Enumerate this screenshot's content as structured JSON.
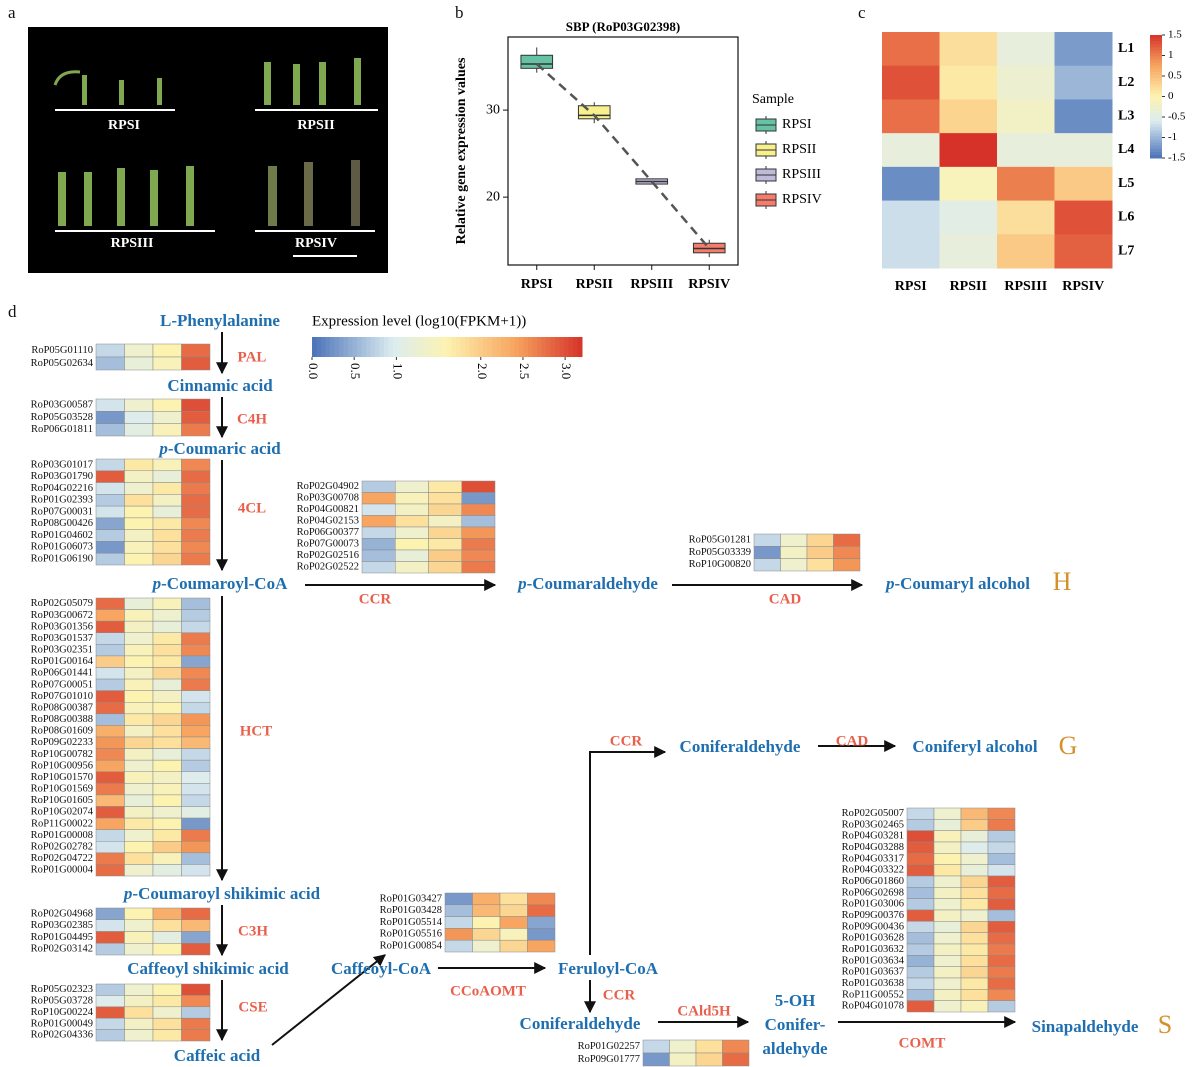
{
  "panel_labels": [
    "a",
    "b",
    "c",
    "d"
  ],
  "panel_a": {
    "stages": [
      "RPSI",
      "RPSII",
      "RPSIII",
      "RPSIV"
    ]
  },
  "chart_data": [
    {
      "type": "box",
      "title": "SBP (RoP03G02398)",
      "y_label": "Relative gene expression values",
      "categories": [
        "RPSI",
        "RPSII",
        "RPSIII",
        "RPSIV"
      ],
      "low": [
        34.3,
        28.5,
        21.5,
        13.1
      ],
      "q1": [
        34.8,
        29.0,
        21.5,
        13.6
      ],
      "median": [
        35.3,
        29.4,
        21.8,
        14.1
      ],
      "q3": [
        36.3,
        30.5,
        22.1,
        14.7
      ],
      "high": [
        37.2,
        30.9,
        22.1,
        15.1
      ],
      "colors": [
        "#66c2a5",
        "#f7f08c",
        "#bebada",
        "#f47c6c"
      ],
      "legend_title": "Sample",
      "ylim": [
        12.2,
        38.4
      ],
      "yticks": [
        20,
        30
      ]
    },
    {
      "type": "heatmap",
      "rows": [
        "L1",
        "L2",
        "L3",
        "L4",
        "L5",
        "L6",
        "L7"
      ],
      "columns": [
        "RPSI",
        "RPSII",
        "RPSIII",
        "RPSIV"
      ],
      "values": [
        [
          1.1,
          0.2,
          -0.4,
          -1.2
        ],
        [
          1.3,
          0.1,
          -0.3,
          -1.0
        ],
        [
          1.1,
          0.3,
          -0.2,
          -1.3
        ],
        [
          -0.4,
          1.5,
          -0.4,
          -0.4
        ],
        [
          -1.3,
          -0.1,
          1.0,
          0.4
        ],
        [
          -0.7,
          -0.5,
          0.2,
          1.3
        ],
        [
          -0.7,
          -0.4,
          0.4,
          1.2
        ]
      ],
      "zlim": [
        -1.5,
        1.5
      ],
      "zticks": [
        1.5,
        1,
        0.5,
        0,
        -0.5,
        -1,
        -1.5
      ]
    }
  ],
  "pathway": {
    "colorbar": {
      "title": "Expression level (log10(FPKM+1))",
      "zlim": [
        0,
        3.2
      ],
      "zticks": [
        {
          "value": 0,
          "label": "0.0"
        },
        0.5,
        {
          "value": 1,
          "label": "1.0"
        },
        {
          "value": 2,
          "label": "2.0"
        },
        2.5,
        {
          "value": 3,
          "label": "3.0"
        }
      ]
    },
    "compounds": [
      "L-Phenylalanine",
      "Cinnamic acid",
      "p-Coumaric acid",
      "p-Coumaroyl-CoA",
      "p-Coumaraldehyde",
      "p-Coumaryl alcohol",
      "Coniferaldehyde",
      "Coniferyl alcohol",
      "p-Coumaroyl shikimic acid",
      "Caffeoyl shikimic acid",
      "Caffeic acid",
      "Caffeoyl-CoA",
      "Feruloyl-CoA",
      "Coniferaldehyde",
      [
        "5-OH",
        "Conifer-",
        "aldehyde"
      ],
      "Sinapaldehyde"
    ],
    "enzymes": [
      "PAL",
      "C4H",
      "4CL",
      "CCR",
      "CAD",
      "HCT",
      "CCR",
      "CAD",
      "C3H",
      "CSE",
      "CCoAOMT",
      "CCR",
      "CAld5H",
      "COMT"
    ],
    "lignin_units": [
      "H",
      "G",
      "S"
    ],
    "heatmaps": [
      {
        "genes": [
          "RoP05G01110",
          "RoP05G02634"
        ],
        "values": [
          [
            0.8,
            1.3,
            1.6,
            2.8
          ],
          [
            0.6,
            1.2,
            1.5,
            2.9
          ]
        ]
      },
      {
        "genes": [
          "RoP03G00587",
          "RoP05G03528",
          "RoP06G01811"
        ],
        "values": [
          [
            0.9,
            1.3,
            1.6,
            3.0
          ],
          [
            0.3,
            1.0,
            1.3,
            2.9
          ],
          [
            0.6,
            1.1,
            1.5,
            2.7
          ]
        ]
      },
      {
        "genes": [
          "RoP03G01017",
          "RoP03G01790",
          "RoP04G02216",
          "RoP01G02393",
          "RoP07G00031",
          "RoP08G00426",
          "RoP01G04602",
          "RoP01G06073",
          "RoP01G06190"
        ],
        "values": [
          [
            0.8,
            1.7,
            1.5,
            2.6
          ],
          [
            2.9,
            1.4,
            1.2,
            2.8
          ],
          [
            0.9,
            1.3,
            1.7,
            2.7
          ],
          [
            0.7,
            1.8,
            1.4,
            2.8
          ],
          [
            0.9,
            1.6,
            1.2,
            2.8
          ],
          [
            0.4,
            1.6,
            1.7,
            2.6
          ],
          [
            0.7,
            1.4,
            1.8,
            2.7
          ],
          [
            0.3,
            1.5,
            1.8,
            2.6
          ],
          [
            0.7,
            1.6,
            1.9,
            2.7
          ]
        ]
      },
      {
        "genes": [
          "RoP02G04902",
          "RoP03G00708",
          "RoP04G00821",
          "RoP04G02153",
          "RoP06G00377",
          "RoP07G00073",
          "RoP02G02516",
          "RoP02G02522"
        ],
        "values": [
          [
            0.7,
            1.3,
            1.7,
            3.0
          ],
          [
            2.4,
            1.5,
            1.8,
            0.3
          ],
          [
            0.9,
            1.4,
            1.9,
            2.6
          ],
          [
            2.4,
            1.8,
            1.4,
            0.6
          ],
          [
            0.8,
            1.3,
            1.9,
            2.5
          ],
          [
            0.5,
            1.6,
            1.7,
            2.7
          ],
          [
            0.6,
            1.2,
            2.0,
            2.6
          ],
          [
            0.8,
            1.4,
            1.9,
            2.7
          ]
        ]
      },
      {
        "genes": [
          "RoP05G01281",
          "RoP05G03339",
          "RoP10G00820"
        ],
        "values": [
          [
            0.8,
            1.3,
            1.9,
            2.8
          ],
          [
            0.3,
            1.4,
            2.0,
            2.6
          ],
          [
            0.8,
            1.3,
            1.8,
            2.5
          ]
        ]
      },
      {
        "genes": [
          "RoP02G05079",
          "RoP03G00672",
          "RoP03G01356",
          "RoP03G01537",
          "RoP03G02351",
          "RoP01G00164",
          "RoP06G01441",
          "RoP07G00051",
          "RoP07G01010",
          "RoP08G00387",
          "RoP08G00388",
          "RoP08G01609",
          "RoP09G02233",
          "RoP10G00782",
          "RoP10G00956",
          "RoP10G01570",
          "RoP10G01569",
          "RoP10G01605",
          "RoP10G02074",
          "RoP11G00022",
          "RoP01G00008",
          "RoP02G02782",
          "RoP02G04722",
          "RoP01G00004"
        ],
        "values": [
          [
            2.8,
            1.2,
            1.5,
            0.6
          ],
          [
            2.4,
            1.5,
            1.3,
            0.7
          ],
          [
            2.9,
            1.4,
            1.2,
            0.8
          ],
          [
            0.8,
            1.3,
            1.7,
            2.7
          ],
          [
            0.7,
            1.5,
            1.8,
            2.6
          ],
          [
            2.0,
            1.6,
            1.7,
            0.4
          ],
          [
            0.9,
            1.4,
            1.9,
            2.6
          ],
          [
            0.7,
            1.5,
            1.2,
            2.7
          ],
          [
            2.9,
            1.6,
            1.4,
            0.9
          ],
          [
            2.8,
            1.5,
            1.6,
            0.8
          ],
          [
            0.6,
            1.7,
            1.9,
            2.5
          ],
          [
            2.3,
            1.4,
            1.8,
            2.4
          ],
          [
            2.5,
            1.9,
            1.8,
            2.2
          ],
          [
            2.6,
            1.4,
            1.2,
            0.8
          ],
          [
            2.4,
            1.3,
            1.6,
            0.7
          ],
          [
            2.9,
            1.5,
            1.4,
            1.0
          ],
          [
            2.7,
            1.3,
            1.5,
            0.9
          ],
          [
            2.2,
            1.2,
            1.6,
            0.8
          ],
          [
            2.9,
            1.4,
            1.3,
            1.1
          ],
          [
            2.4,
            1.7,
            1.6,
            0.3
          ],
          [
            0.8,
            1.3,
            1.7,
            2.7
          ],
          [
            0.9,
            1.6,
            2.0,
            2.5
          ],
          [
            2.7,
            1.8,
            1.5,
            0.6
          ],
          [
            2.8,
            1.3,
            1.1,
            0.9
          ]
        ]
      },
      {
        "genes": [
          "RoP02G04968",
          "RoP03G02385",
          "RoP01G04495",
          "RoP02G03142"
        ],
        "values": [
          [
            0.4,
            1.6,
            2.3,
            2.8
          ],
          [
            0.9,
            1.3,
            1.8,
            2.2
          ],
          [
            2.9,
            1.5,
            1.1,
            0.4
          ],
          [
            0.7,
            1.3,
            1.6,
            2.9
          ]
        ]
      },
      {
        "genes": [
          "RoP05G02323",
          "RoP05G03728",
          "RoP10G00224",
          "RoP01G00049",
          "RoP02G04336"
        ],
        "values": [
          [
            0.7,
            1.3,
            1.6,
            3.0
          ],
          [
            1.0,
            1.4,
            1.7,
            2.6
          ],
          [
            2.9,
            1.8,
            1.3,
            0.7
          ],
          [
            0.8,
            1.4,
            1.8,
            2.7
          ],
          [
            0.7,
            1.3,
            1.7,
            2.7
          ]
        ]
      },
      {
        "genes": [
          "RoP01G03427",
          "RoP01G03428",
          "RoP01G05514",
          "RoP01G05516",
          "RoP01G00854"
        ],
        "values": [
          [
            0.3,
            2.3,
            1.8,
            2.6
          ],
          [
            0.6,
            2.2,
            1.9,
            2.8
          ],
          [
            0.8,
            1.6,
            2.4,
            0.4
          ],
          [
            2.5,
            1.9,
            1.5,
            0.3
          ],
          [
            0.8,
            1.3,
            1.9,
            2.4
          ]
        ]
      },
      {
        "genes": [
          "RoP01G02257",
          "RoP09G01777"
        ],
        "values": [
          [
            0.8,
            1.3,
            1.8,
            2.6
          ],
          [
            0.3,
            1.4,
            1.9,
            2.8
          ]
        ]
      },
      {
        "genes": [
          "RoP02G05007",
          "RoP03G02465",
          "RoP04G03281",
          "RoP04G03288",
          "RoP04G03317",
          "RoP04G03322",
          "RoP06G01860",
          "RoP06G02698",
          "RoP01G03006",
          "RoP09G00376",
          "RoP09G00436",
          "RoP01G03628",
          "RoP01G03632",
          "RoP01G03634",
          "RoP01G03637",
          "RoP01G03638",
          "RoP11G00552",
          "RoP04G01078"
        ],
        "values": [
          [
            0.8,
            1.3,
            2.2,
            2.6
          ],
          [
            0.7,
            1.2,
            2.0,
            2.7
          ],
          [
            3.0,
            1.5,
            1.2,
            0.7
          ],
          [
            2.9,
            1.4,
            1.0,
            0.8
          ],
          [
            2.8,
            1.6,
            1.3,
            0.6
          ],
          [
            2.9,
            1.7,
            1.2,
            0.9
          ],
          [
            0.7,
            1.3,
            1.9,
            2.9
          ],
          [
            0.6,
            1.4,
            1.8,
            2.8
          ],
          [
            0.7,
            1.3,
            1.7,
            2.9
          ],
          [
            2.9,
            1.4,
            1.3,
            0.6
          ],
          [
            0.8,
            1.2,
            1.9,
            2.9
          ],
          [
            0.6,
            1.3,
            1.8,
            2.8
          ],
          [
            0.7,
            1.4,
            1.7,
            2.7
          ],
          [
            0.5,
            1.3,
            1.8,
            2.8
          ],
          [
            0.7,
            1.4,
            1.9,
            2.7
          ],
          [
            0.8,
            1.3,
            1.7,
            2.8
          ],
          [
            0.6,
            1.4,
            1.8,
            2.6
          ],
          [
            2.9,
            1.3,
            1.5,
            0.7
          ]
        ]
      }
    ]
  }
}
